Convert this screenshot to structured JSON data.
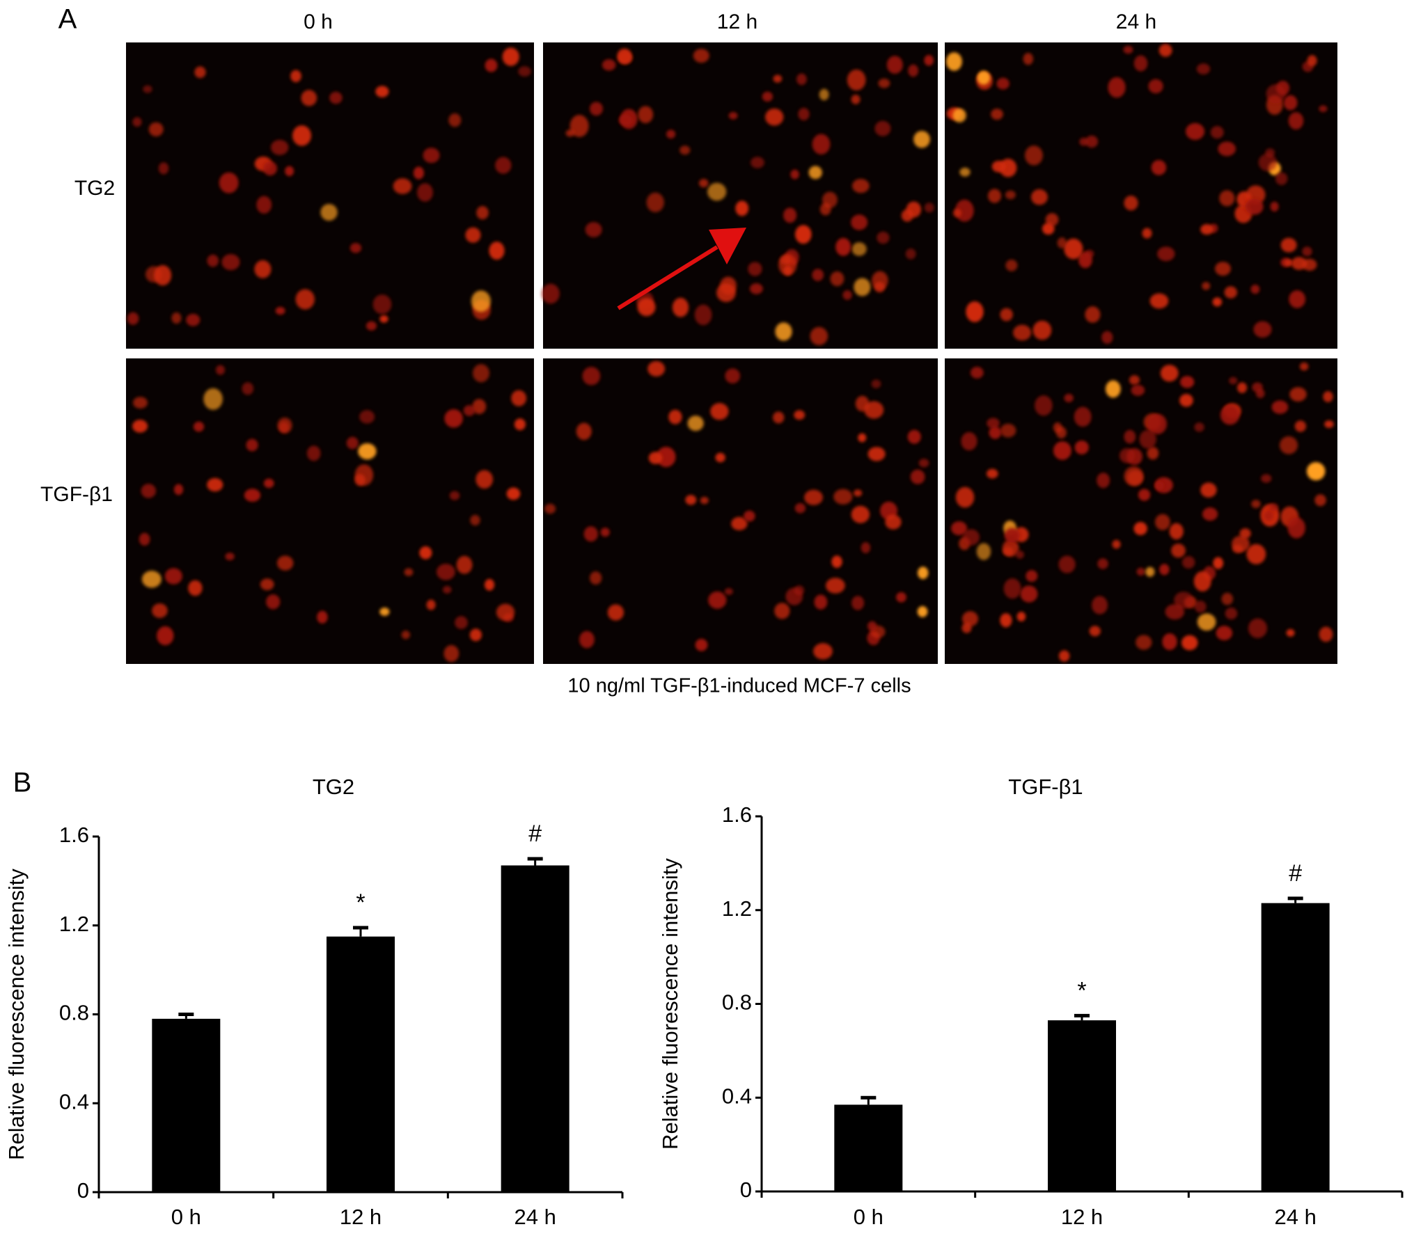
{
  "panel_a": {
    "label": "A",
    "columns": [
      "0 h",
      "12 h",
      "24 h"
    ],
    "rows": [
      "TG2",
      "TGF-β1"
    ],
    "caption": "10 ng/ml TGF-β1-induced MCF-7 cells"
  },
  "panel_b": {
    "label": "B"
  },
  "chart_data": [
    {
      "type": "bar",
      "title": "TG2",
      "ylabel": "Relative fluorescence intensity",
      "categories": [
        "0 h",
        "12 h",
        "24 h"
      ],
      "values": [
        0.78,
        1.15,
        1.47
      ],
      "errors": [
        0.02,
        0.04,
        0.03
      ],
      "annotations": [
        null,
        "*",
        "#"
      ],
      "color": "#000000",
      "ylim": [
        0,
        1.6
      ],
      "yticks": [
        0,
        0.4,
        0.8,
        1.2,
        1.6
      ]
    },
    {
      "type": "bar",
      "title": "TGF-β1",
      "ylabel": "Relative fluorescence intensity",
      "categories": [
        "0 h",
        "12 h",
        "24 h"
      ],
      "values": [
        0.37,
        0.73,
        1.23
      ],
      "errors": [
        0.03,
        0.02,
        0.02
      ],
      "annotations": [
        null,
        "*",
        "#"
      ],
      "color": "#000000",
      "ylim": [
        0,
        1.6
      ],
      "yticks": [
        0,
        0.4,
        0.8,
        1.2,
        1.6
      ]
    }
  ]
}
